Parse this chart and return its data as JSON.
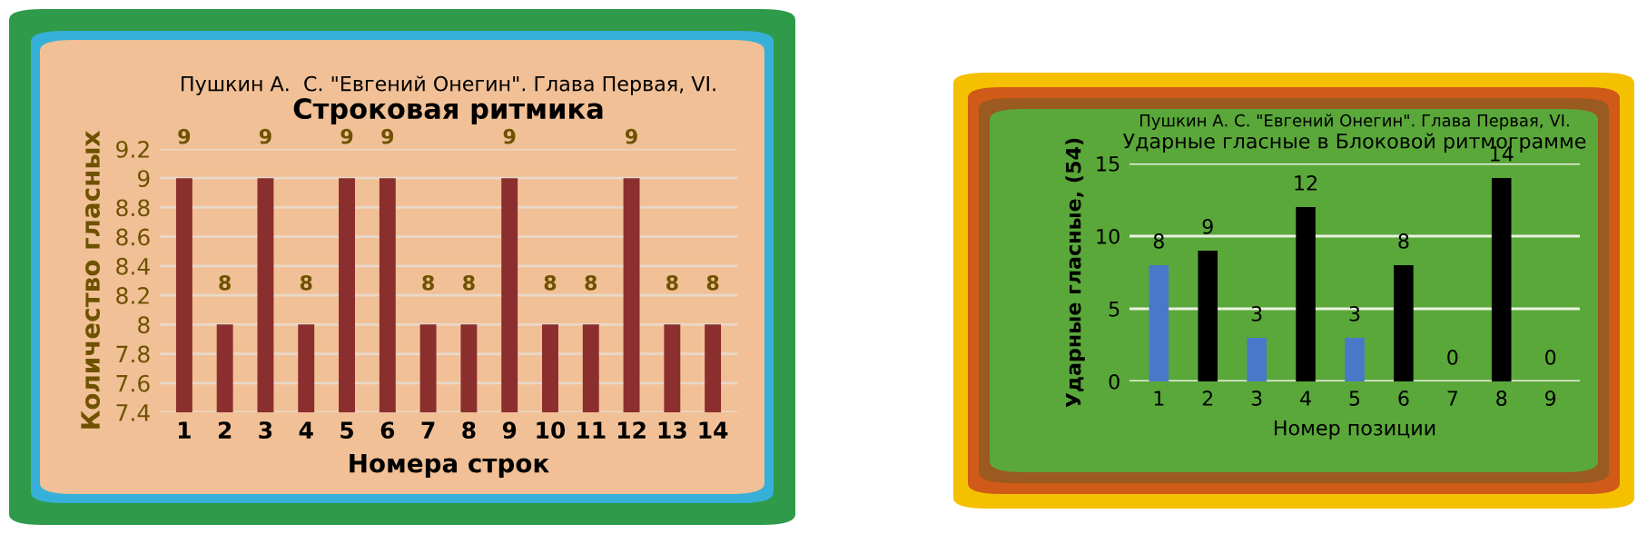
{
  "chart_data": [
    {
      "type": "bar",
      "subtitle": "Пушкин А.  С. \"Евгений Онегин\". Глава Первая, VI.",
      "title": "Строковая ритмика",
      "xlabel": "Номера строк",
      "ylabel": "Количество гласных",
      "categories": [
        "1",
        "2",
        "3",
        "4",
        "5",
        "6",
        "7",
        "8",
        "9",
        "10",
        "11",
        "12",
        "13",
        "14"
      ],
      "values": [
        9,
        8,
        9,
        8,
        9,
        9,
        8,
        8,
        9,
        8,
        8,
        9,
        8,
        8
      ],
      "color": "#8b2e2e",
      "ylim": [
        7.4,
        9.2
      ],
      "yticks": [
        7.4,
        7.6,
        7.8,
        8,
        8.2,
        8.4,
        8.6,
        8.8,
        9,
        9.2
      ],
      "grid": "y",
      "data_labels": true,
      "legend": false
    },
    {
      "type": "bar",
      "subtitle": "Пушкин А. С. \"Евгений Онегин\". Глава Первая, VI.",
      "title": "Ударные гласные в Блоковой ритмограмме",
      "xlabel": "Номер позиции",
      "ylabel": "Ударные гласные, (54)",
      "categories": [
        "1",
        "2",
        "3",
        "4",
        "5",
        "6",
        "7",
        "8",
        "9"
      ],
      "values": [
        8,
        9,
        3,
        12,
        3,
        8,
        0,
        14,
        0
      ],
      "colors": [
        "#4a78c8",
        "#000000",
        "#4a78c8",
        "#000000",
        "#4a78c8",
        "#000000",
        "#000000",
        "#000000",
        "#000000"
      ],
      "ylim": [
        0,
        15
      ],
      "yticks": [
        0,
        5,
        10,
        15
      ],
      "grid": "y",
      "data_labels": true,
      "legend": false
    }
  ]
}
